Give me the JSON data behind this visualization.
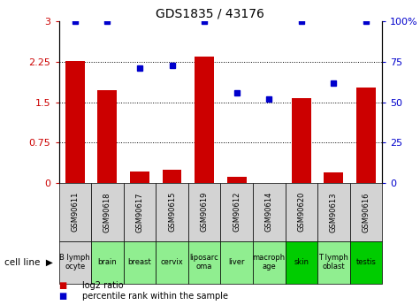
{
  "title": "GDS1835 / 43176",
  "samples": [
    "GSM90611",
    "GSM90618",
    "GSM90617",
    "GSM90615",
    "GSM90619",
    "GSM90612",
    "GSM90614",
    "GSM90620",
    "GSM90613",
    "GSM90616"
  ],
  "cell_lines": [
    "B lymph\nocyte",
    "brain",
    "breast",
    "cervix",
    "liposarc\noma",
    "liver",
    "macroph\nage",
    "skin",
    "T lymph\noblast",
    "testis"
  ],
  "cell_bg": [
    "#d3d3d3",
    "#90ee90",
    "#90ee90",
    "#90ee90",
    "#90ee90",
    "#90ee90",
    "#90ee90",
    "#00cc00",
    "#90ee90",
    "#00cc00"
  ],
  "log2_ratio": [
    2.27,
    1.72,
    0.22,
    0.24,
    2.35,
    0.12,
    0.0,
    1.57,
    0.19,
    1.78
  ],
  "percentile_rank": [
    100.0,
    100.0,
    71.0,
    73.0,
    100.0,
    56.0,
    52.0,
    100.0,
    62.0,
    100.0
  ],
  "bar_color": "#cc0000",
  "dot_color": "#0000cc",
  "ylim_left": [
    0,
    3
  ],
  "ylim_right": [
    0,
    100
  ],
  "yticks_left": [
    0,
    0.75,
    1.5,
    2.25,
    3
  ],
  "yticks_right": [
    0,
    25,
    50,
    75,
    100
  ],
  "ytick_labels_left": [
    "0",
    "0.75",
    "1.5",
    "2.25",
    "3"
  ],
  "ytick_labels_right": [
    "0",
    "25",
    "50",
    "75",
    "100%"
  ],
  "hlines": [
    0.75,
    1.5,
    2.25
  ],
  "legend_items": [
    "log2 ratio",
    "percentile rank within the sample"
  ],
  "legend_colors": [
    "#cc0000",
    "#0000cc"
  ],
  "gsm_bg": "#d3d3d3",
  "bar_width": 0.6,
  "dot_size": 5
}
